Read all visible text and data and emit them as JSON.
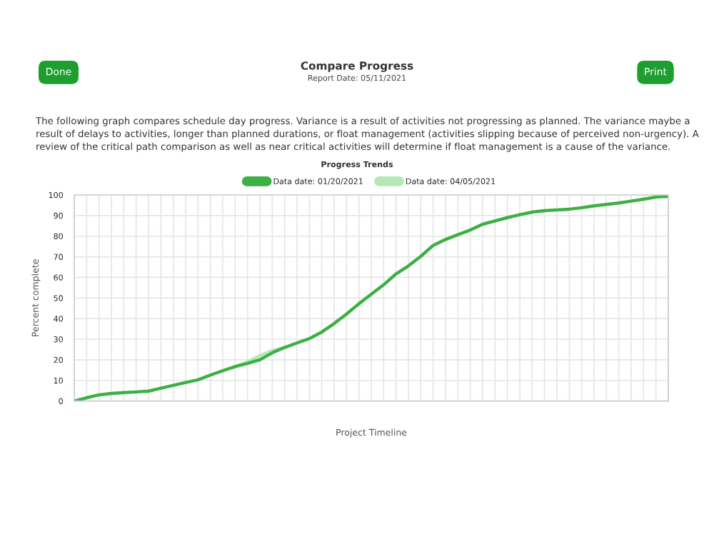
{
  "chart_data": {
    "type": "line",
    "title": "Compare Progress",
    "subtitle": "Report Date: 05/11/2021",
    "xlabel": "Project Timeline",
    "ylabel": "Percent complete",
    "annotations": [
      "Done",
      "Print",
      "The following graph compares schedule day progress. Variance is a result of activities not progressing as planned. The variance maybe a result of delays to activities, longer than planned durations, or float management (activities slipping because of perceived non-urgency). A review of the critical path comparison as well as near critical activities will determine if float management is a cause of the variance.",
      "Progress Trends"
    ],
    "categories": [
      null,
      null,
      null,
      null,
      null,
      null,
      null,
      null,
      null,
      null,
      null,
      null,
      null,
      null,
      null,
      null,
      null,
      null,
      null,
      null,
      null,
      null,
      null,
      null,
      null,
      null,
      null,
      null,
      null,
      null,
      null,
      null,
      null,
      null,
      null,
      null,
      null,
      null,
      null,
      null,
      null,
      null,
      null,
      null,
      null,
      null,
      null,
      null,
      null
    ],
    "series": [
      {
        "name": "Data date: 04/05/2021",
        "color": "#b5e8b5",
        "values": [
          null,
          null,
          null,
          null,
          null,
          null,
          null,
          null,
          null,
          null,
          null,
          null,
          null,
          16.7,
          19,
          22,
          24.5,
          26,
          null,
          null,
          null,
          null,
          null,
          null,
          null,
          null,
          null,
          null,
          null,
          null,
          null,
          null,
          null,
          null,
          null,
          null,
          null,
          null,
          null,
          null,
          null,
          null,
          null,
          null,
          null,
          null,
          null,
          null,
          null
        ]
      },
      {
        "name": "Data date: 01/20/2021",
        "color": "#3cb043",
        "values": [
          0,
          1.6,
          3,
          3.7,
          4.1,
          4.4,
          4.8,
          6.2,
          7.6,
          9,
          10.3,
          12.6,
          14.7,
          16.7,
          18.3,
          20,
          23.4,
          26,
          28.2,
          30.3,
          33.5,
          37.6,
          42.2,
          47.2,
          51.8,
          56.4,
          61.7,
          65.6,
          70.2,
          75.5,
          78.4,
          80.7,
          83,
          85.8,
          87.4,
          89,
          90.4,
          91.7,
          92.4,
          92.7,
          93.1,
          93.8,
          94.7,
          95.4,
          96.1,
          97,
          97.9,
          99,
          99.3
        ]
      }
    ],
    "ylim": [
      0,
      100
    ],
    "yticks": [
      0,
      10,
      20,
      30,
      40,
      50,
      60,
      70,
      80,
      90,
      100
    ],
    "grid": true,
    "legend": "top",
    "tick_labels": "y",
    "marker": "none",
    "line_style": "solid"
  }
}
